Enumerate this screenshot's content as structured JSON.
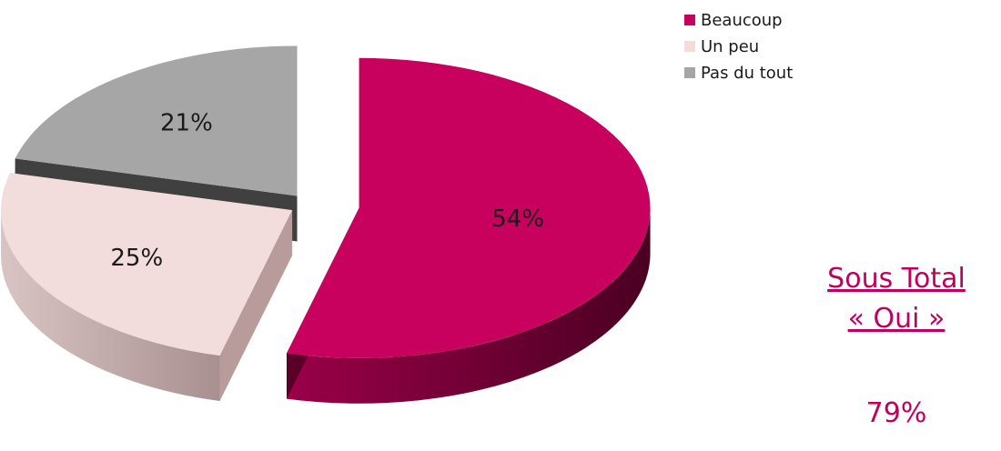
{
  "chart_data": {
    "type": "pie",
    "categories": [
      "Beaucoup",
      "Un peu",
      "Pas du tout"
    ],
    "values": [
      54,
      25,
      21
    ],
    "value_labels": [
      "54%",
      "25%",
      "21%"
    ],
    "colors": [
      "#c8005e",
      "#f2dcdc",
      "#a6a6a6"
    ],
    "title": "",
    "legend_position": "top-right",
    "style": "3d-exploded"
  },
  "sous_total": {
    "label_line1": "Sous Total",
    "label_line2": "« Oui »",
    "value": "79%"
  }
}
